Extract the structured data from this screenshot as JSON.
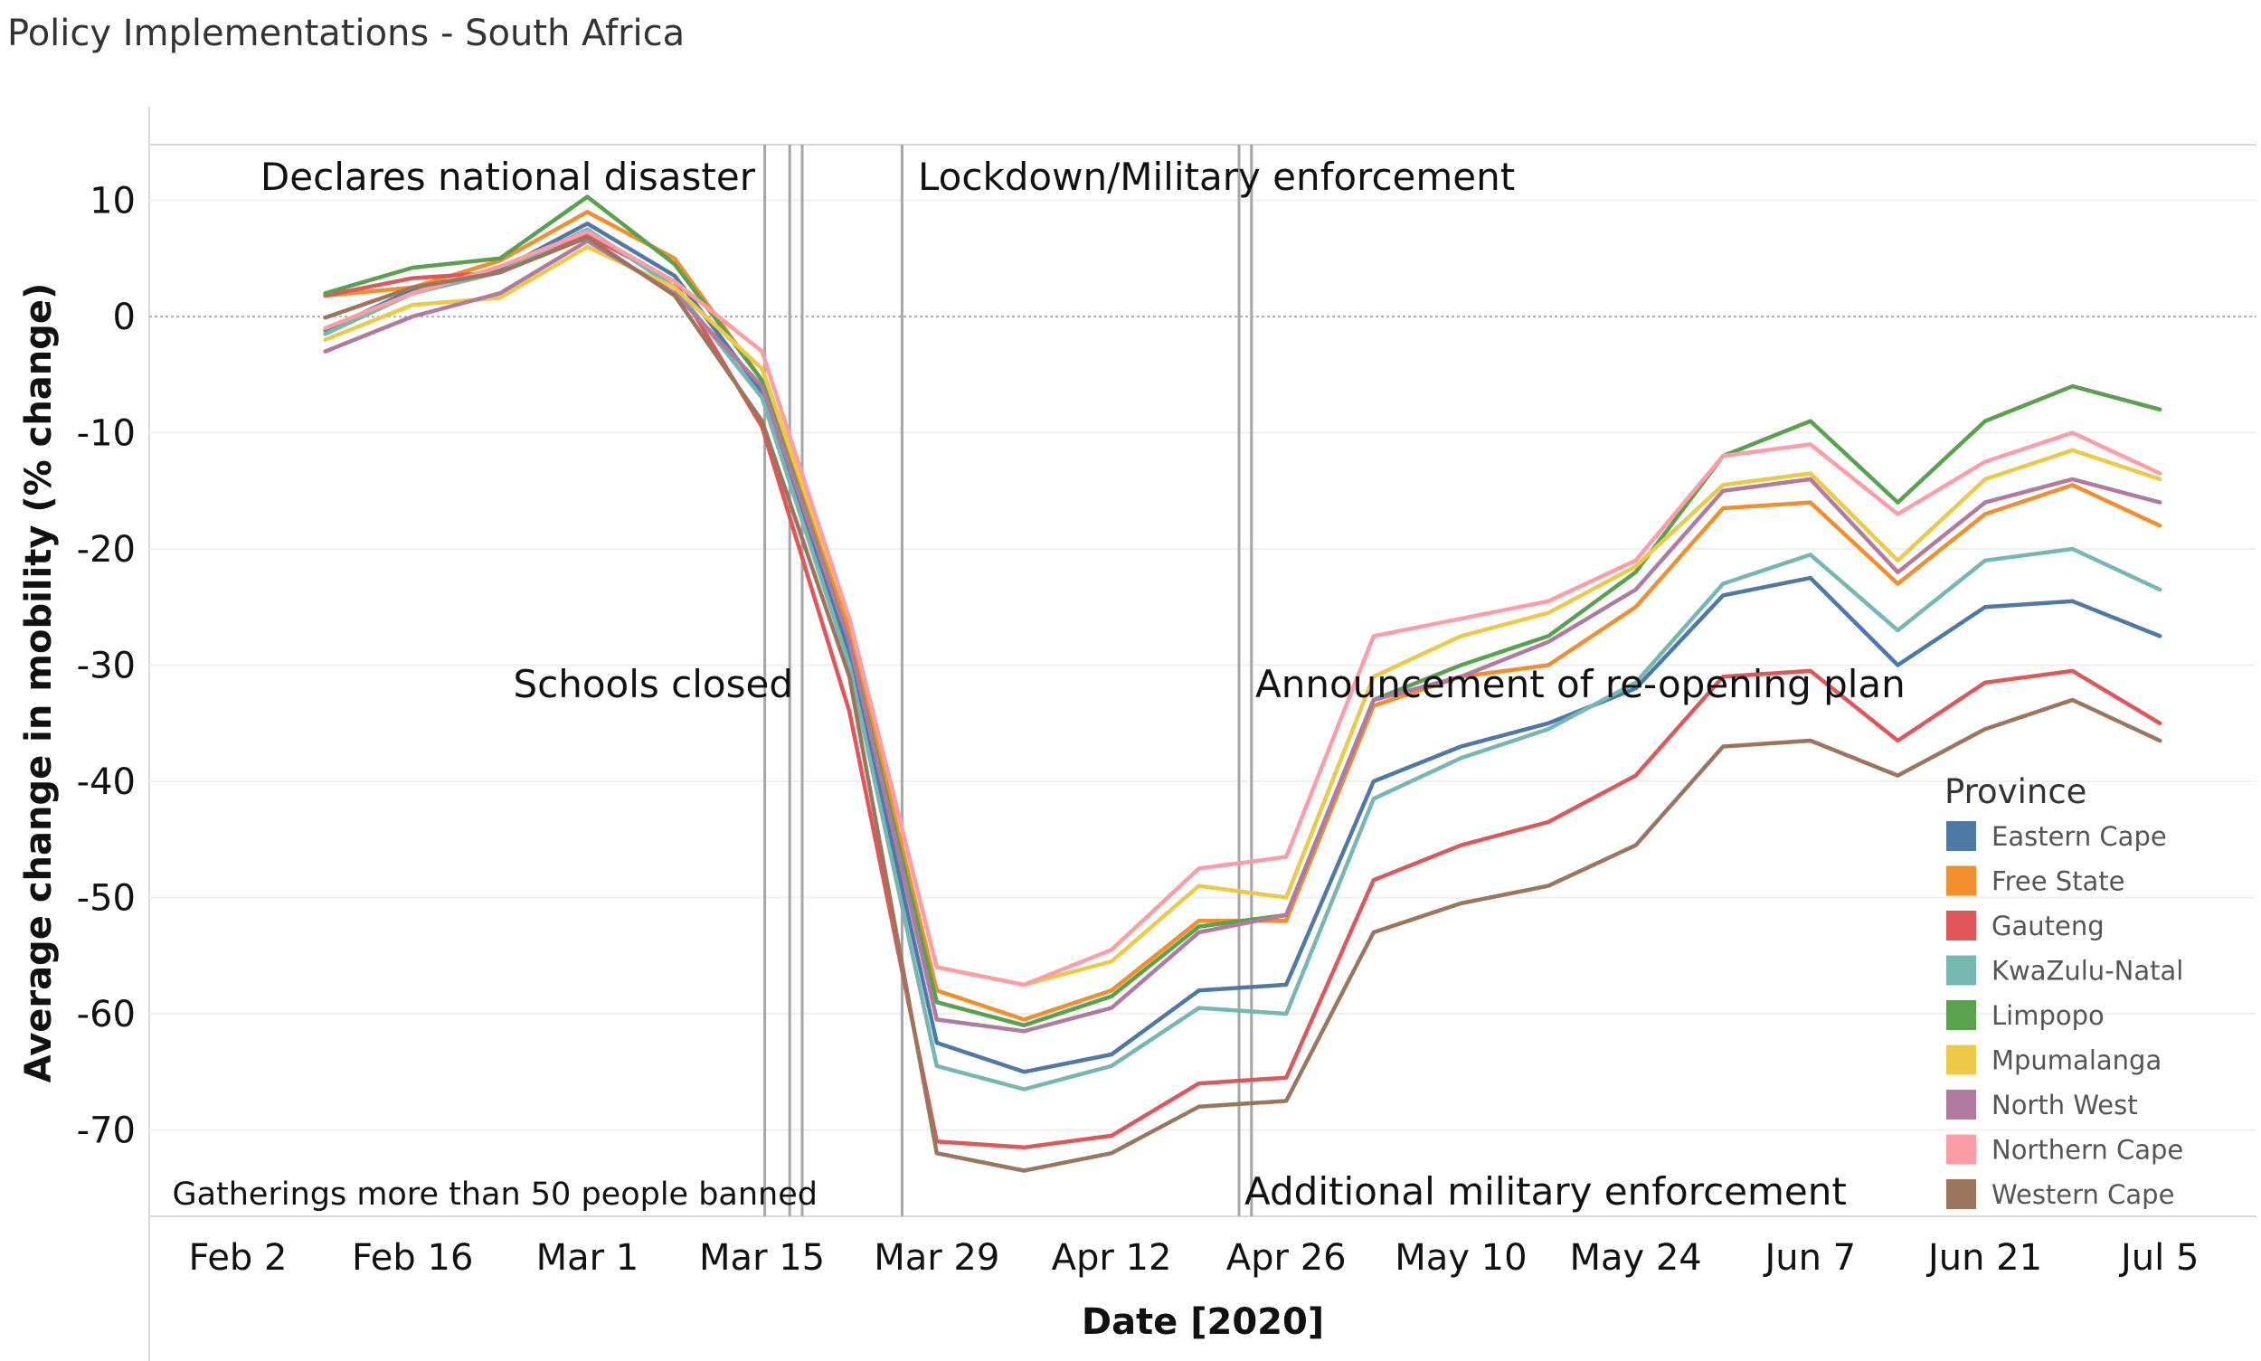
{
  "title": "Policy Implementations - South Africa",
  "chart_data": {
    "type": "line",
    "title": "Policy Implementations - South Africa",
    "xlabel": "Date [2020]",
    "ylabel": "Average change in mobility (% change)",
    "ylim": [
      -77,
      15
    ],
    "x_ticks": [
      "Feb 2",
      "Feb 16",
      "Mar 1",
      "Mar 15",
      "Mar 29",
      "Apr 12",
      "Apr 26",
      "May 10",
      "May 24",
      "Jun 7",
      "Jun 21",
      "Jul 5"
    ],
    "y_ticks": [
      10,
      0,
      -10,
      -20,
      -30,
      -40,
      -50,
      -60,
      -70
    ],
    "x": [
      "2020-02-09",
      "2020-02-16",
      "2020-02-23",
      "2020-03-01",
      "2020-03-08",
      "2020-03-15",
      "2020-03-22",
      "2020-03-29",
      "2020-04-05",
      "2020-04-12",
      "2020-04-19",
      "2020-04-26",
      "2020-05-03",
      "2020-05-10",
      "2020-05-17",
      "2020-05-24",
      "2020-05-31",
      "2020-06-07",
      "2020-06-14",
      "2020-06-21",
      "2020-06-28",
      "2020-07-05"
    ],
    "legend": {
      "title": "Province",
      "position": "right"
    },
    "grid": true,
    "series": [
      {
        "name": "Eastern Cape",
        "color": "#4e79a7",
        "values": [
          -1.2,
          2.3,
          4.0,
          8.0,
          3.5,
          -6.5,
          -29,
          -62.5,
          -65,
          -63.5,
          -58,
          -57.5,
          -40,
          -37,
          -35,
          -32,
          -24,
          -22.5,
          -30,
          -25,
          -24.5,
          -27.5
        ]
      },
      {
        "name": "Free State",
        "color": "#f28e2b",
        "values": [
          1.8,
          2.5,
          4.8,
          9.0,
          5.0,
          -5.5,
          -27,
          -58,
          -60.5,
          -58,
          -52,
          -52,
          -33.5,
          -31,
          -30,
          -25,
          -16.5,
          -16,
          -23,
          -17,
          -14.5,
          -18
        ]
      },
      {
        "name": "Gauteng",
        "color": "#e15759",
        "values": [
          1.8,
          3.3,
          3.8,
          7.0,
          3.0,
          -9.5,
          -34,
          -71,
          -71.5,
          -70.5,
          -66,
          -65.5,
          -48.5,
          -45.5,
          -43.5,
          -39.5,
          -31,
          -30.5,
          -36.5,
          -31.5,
          -30.5,
          -35
        ]
      },
      {
        "name": "KwaZulu-Natal",
        "color": "#76b7b2",
        "values": [
          -1.5,
          2.0,
          3.8,
          7.5,
          2.5,
          -7,
          -30,
          -64.5,
          -66.5,
          -64.5,
          -59.5,
          -60,
          -41.5,
          -38,
          -35.5,
          -31.5,
          -23,
          -20.5,
          -27,
          -21,
          -20,
          -23.5
        ]
      },
      {
        "name": "Limpopo",
        "color": "#59a14f",
        "values": [
          2.0,
          4.2,
          5.0,
          10.3,
          4.5,
          -5.5,
          -28,
          -59,
          -61,
          -58.5,
          -52.5,
          -51.5,
          -33,
          -30,
          -27.5,
          -22,
          -12,
          -9,
          -16,
          -9,
          -6,
          -8
        ]
      },
      {
        "name": "Mpumalanga",
        "color": "#edc948",
        "values": [
          -2.0,
          1.0,
          1.6,
          6.0,
          2.5,
          -4.5,
          -26,
          -56,
          -57.5,
          -55.5,
          -49,
          -50,
          -31,
          -27.5,
          -25.5,
          -21.5,
          -14.5,
          -13.5,
          -21,
          -14,
          -11.5,
          -14
        ]
      },
      {
        "name": "North West",
        "color": "#b07aa1",
        "values": [
          -3.0,
          0.0,
          2.0,
          6.5,
          2.0,
          -6,
          -28,
          -60.5,
          -61.5,
          -59.5,
          -53,
          -51.5,
          -33,
          -31,
          -28,
          -23.5,
          -15,
          -14,
          -22,
          -16,
          -14,
          -16
        ]
      },
      {
        "name": "Northern Cape",
        "color": "#ff9da7",
        "values": [
          -1.0,
          2.0,
          4.3,
          7.3,
          3.0,
          -3,
          -26,
          -56,
          -57.5,
          -54.5,
          -47.5,
          -46.5,
          -27.5,
          -26,
          -24.5,
          -21,
          -12,
          -11,
          -17,
          -12.5,
          -10,
          -13.5
        ]
      },
      {
        "name": "Western Cape",
        "color": "#9c755f",
        "values": [
          -0.1,
          2.5,
          3.8,
          6.8,
          1.8,
          -9,
          -31,
          -72,
          -73.5,
          -72,
          -68,
          -67.5,
          -53,
          -50.5,
          -49,
          -45.5,
          -37,
          -36.5,
          -39.5,
          -35.5,
          -33,
          -36.5
        ]
      }
    ],
    "annotations": [
      {
        "text": "Declares national disaster",
        "date": "2020-03-15"
      },
      {
        "text": "Schools closed",
        "date": "2020-03-18"
      },
      {
        "text": "Gatherings more than 50 people banned",
        "date": "2020-03-15"
      },
      {
        "text": "Lockdown/Military enforcement",
        "date": "2020-03-27"
      },
      {
        "text": "Announcement of re-opening plan",
        "date": "2020-04-23"
      },
      {
        "text": "Additional military enforcement",
        "date": "2020-04-22"
      }
    ]
  }
}
